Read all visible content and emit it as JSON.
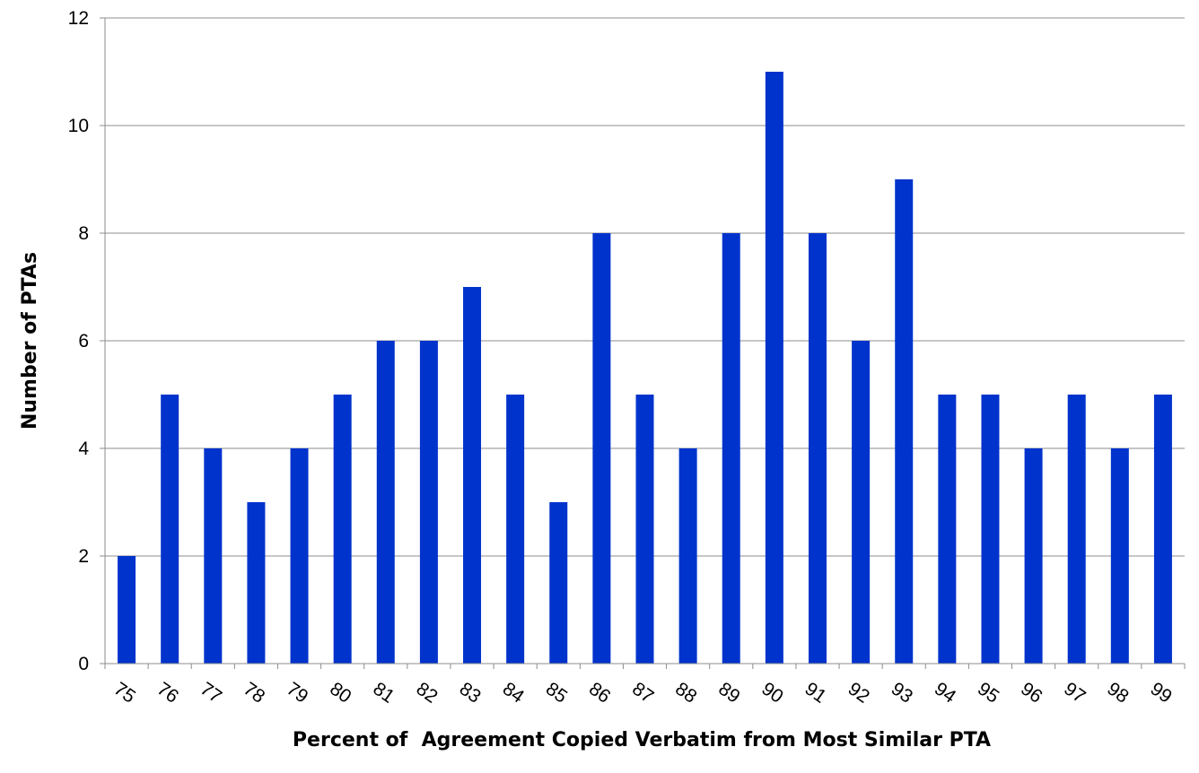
{
  "chart_data": {
    "type": "bar",
    "title": "",
    "xlabel": "Percent of  Agreement Copied Verbatim from Most Similar PTA",
    "ylabel": "Number of PTAs",
    "categories": [
      "75",
      "76",
      "77",
      "78",
      "79",
      "80",
      "81",
      "82",
      "83",
      "84",
      "85",
      "86",
      "87",
      "88",
      "89",
      "90",
      "91",
      "92",
      "93",
      "94",
      "95",
      "96",
      "97",
      "98",
      "99"
    ],
    "values": [
      2,
      5,
      4,
      3,
      4,
      5,
      6,
      6,
      7,
      5,
      3,
      8,
      5,
      4,
      8,
      11,
      8,
      6,
      9,
      5,
      5,
      4,
      5,
      4,
      5
    ],
    "ylim": [
      0,
      12
    ],
    "yticks": [
      0,
      2,
      4,
      6,
      8,
      10,
      12
    ],
    "grid": true,
    "legend": "none",
    "bar_color": "#0033cc",
    "grid_color": "#8c8c8c"
  }
}
